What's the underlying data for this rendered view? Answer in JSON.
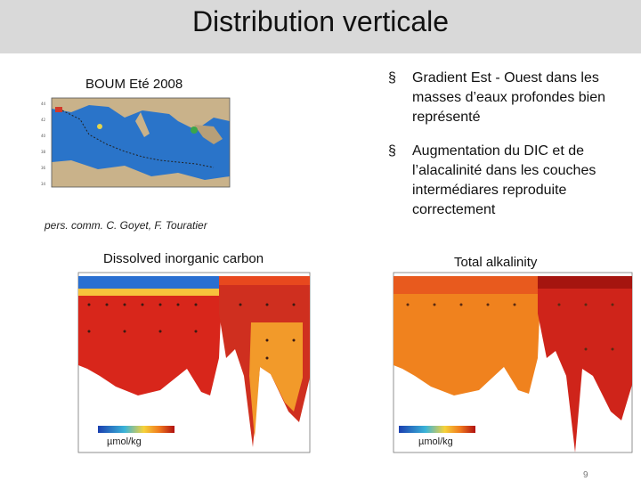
{
  "slide": {
    "title": "Distribution verticale",
    "map_label": "BOUM Eté 2008",
    "credit": "pers. comm. C. Goyet, F. Touratier",
    "bullets": [
      {
        "marker": "§",
        "text": "Gradient Est - Ouest dans les masses d’eaux profondes bien représenté"
      },
      {
        "marker": "§",
        "text": "Augmentation du DIC et de l’alacalinité dans les couches intermédiares reproduite correctement"
      }
    ],
    "plots": [
      {
        "label": "Dissolved inorganic carbon",
        "unit": "µmol/kg"
      },
      {
        "label": "Total alkalinity",
        "unit": "µmol/kg"
      }
    ],
    "page_number": "9"
  },
  "colors": {
    "title_bar": "#d9d9d9",
    "sea": "#2a74c9",
    "land": "#c9b28a",
    "deep_red": "#c21a14",
    "orange": "#f0821e"
  }
}
